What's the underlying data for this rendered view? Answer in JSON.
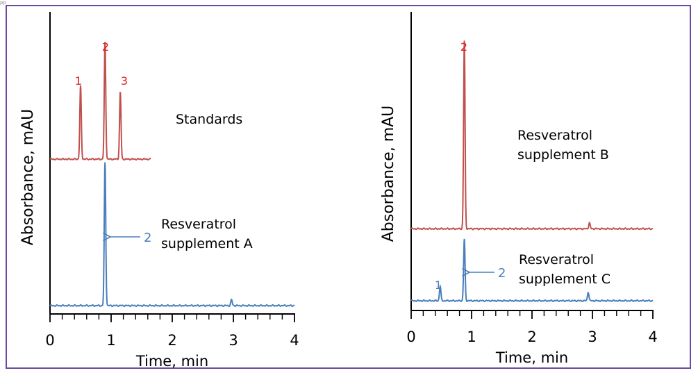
{
  "page": {
    "header_fragment": "pp"
  },
  "colors": {
    "red_trace": "#c0504d",
    "blue_trace": "#4a7ebb",
    "peak_label_red": "#e02020",
    "peak_label_blue": "#4a7ebb",
    "frame": "#6a4aa0",
    "axis": "#000000"
  },
  "chart_data": [
    {
      "type": "line",
      "panel": "left",
      "xlabel": "Time, min",
      "ylabel": "Absorbance, mAU",
      "xlim": [
        0,
        4
      ],
      "x_ticks": [
        "0",
        "1",
        "2",
        "3",
        "4"
      ],
      "series": [
        {
          "name": "Standards",
          "color": "#c0504d",
          "x_range": [
            0,
            1.65
          ],
          "baseline_frac": 0.502,
          "peaks": [
            {
              "label": "1",
              "x": 0.5,
              "height_frac": 0.25
            },
            {
              "label": "2",
              "x": 0.9,
              "height_frac": 0.4
            },
            {
              "label": "3",
              "x": 1.15,
              "height_frac": 0.23
            }
          ]
        },
        {
          "name": "Resveratrol supplement A",
          "color": "#4a7ebb",
          "x_range": [
            0,
            4
          ],
          "baseline_frac": 0.0,
          "peaks": [
            {
              "label": "2",
              "x": 0.9,
              "height_frac": 0.49
            },
            {
              "label": "",
              "x": 2.97,
              "height_frac": 0.02
            }
          ]
        }
      ],
      "annotations": [
        {
          "text": "Standards",
          "series": "Standards"
        },
        {
          "text": "Resveratrol",
          "series": "Resveratrol supplement A"
        },
        {
          "text": "supplement A",
          "series": "Resveratrol supplement A"
        },
        {
          "text": "2",
          "series": "Resveratrol supplement A",
          "kind": "arrow-label"
        }
      ]
    },
    {
      "type": "line",
      "panel": "right",
      "xlabel": "Time, min",
      "ylabel": "Absorbance, mAU",
      "xlim": [
        0,
        4
      ],
      "x_ticks": [
        "0",
        "1",
        "2",
        "3",
        "4"
      ],
      "series": [
        {
          "name": "Resveratrol supplement B",
          "color": "#c0504d",
          "x_range": [
            0,
            4
          ],
          "baseline_frac": 0.245,
          "peaks": [
            {
              "label": "2",
              "x": 0.88,
              "height_frac": 0.64
            },
            {
              "label": "",
              "x": 2.95,
              "height_frac": 0.02
            }
          ]
        },
        {
          "name": "Resveratrol supplement C",
          "color": "#4a7ebb",
          "x_range": [
            0,
            4
          ],
          "baseline_frac": 0.0,
          "peaks": [
            {
              "label": "1",
              "x": 0.48,
              "height_frac": 0.05
            },
            {
              "label": "2",
              "x": 0.88,
              "height_frac": 0.21
            },
            {
              "label": "",
              "x": 2.93,
              "height_frac": 0.03
            }
          ]
        }
      ],
      "annotations": [
        {
          "text": "Resveratrol",
          "series": "Resveratrol supplement B"
        },
        {
          "text": "supplement B",
          "series": "Resveratrol supplement B"
        },
        {
          "text": "Resveratrol",
          "series": "Resveratrol supplement C"
        },
        {
          "text": "supplement C",
          "series": "Resveratrol supplement C"
        },
        {
          "text": "1",
          "series": "Resveratrol supplement C",
          "kind": "peak-label"
        },
        {
          "text": "2",
          "series": "Resveratrol supplement C",
          "kind": "arrow-label"
        }
      ]
    }
  ]
}
